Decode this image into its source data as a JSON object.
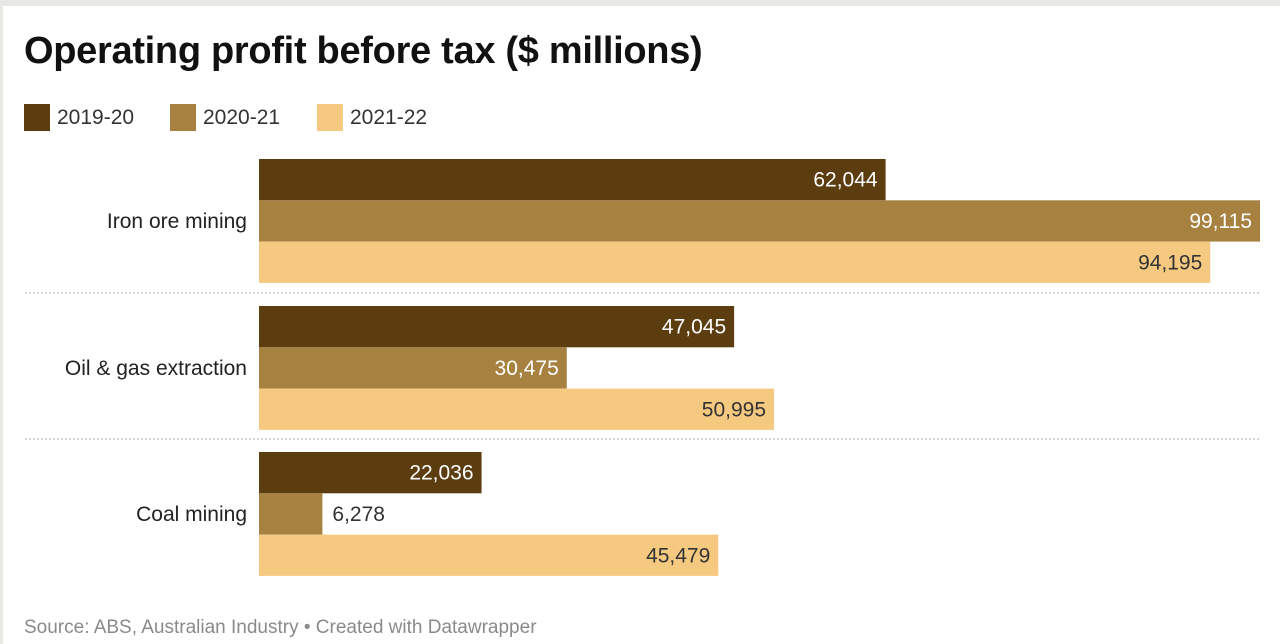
{
  "chart_data": {
    "type": "bar",
    "orientation": "horizontal",
    "title": "Operating profit before tax ($ millions)",
    "categories": [
      "Iron ore mining",
      "Oil & gas extraction",
      "Coal mining"
    ],
    "series": [
      {
        "name": "2019-20",
        "color": "#5c3d10",
        "values": [
          62044,
          47045,
          22036
        ],
        "labels": [
          "62,044",
          "47,045",
          "22,036"
        ]
      },
      {
        "name": "2020-21",
        "color": "#a6813f",
        "values": [
          99115,
          30475,
          6278
        ],
        "labels": [
          "99,115",
          "30,475",
          "6,278"
        ]
      },
      {
        "name": "2021-22",
        "color": "#f6c981",
        "values": [
          94195,
          50995,
          45479
        ],
        "labels": [
          "94,195",
          "50,995",
          "45,479"
        ]
      }
    ],
    "xlabel": "",
    "ylabel": "",
    "xlim": [
      0,
      99115
    ],
    "grid": false,
    "legend_position": "top-left",
    "source": "Source: ABS, Australian Industry • Created with Datawrapper"
  },
  "legend": [
    {
      "label": "2019-20",
      "color": "#5c3d10"
    },
    {
      "label": "2020-21",
      "color": "#a6813f"
    },
    {
      "label": "2021-22",
      "color": "#f6c981"
    }
  ]
}
